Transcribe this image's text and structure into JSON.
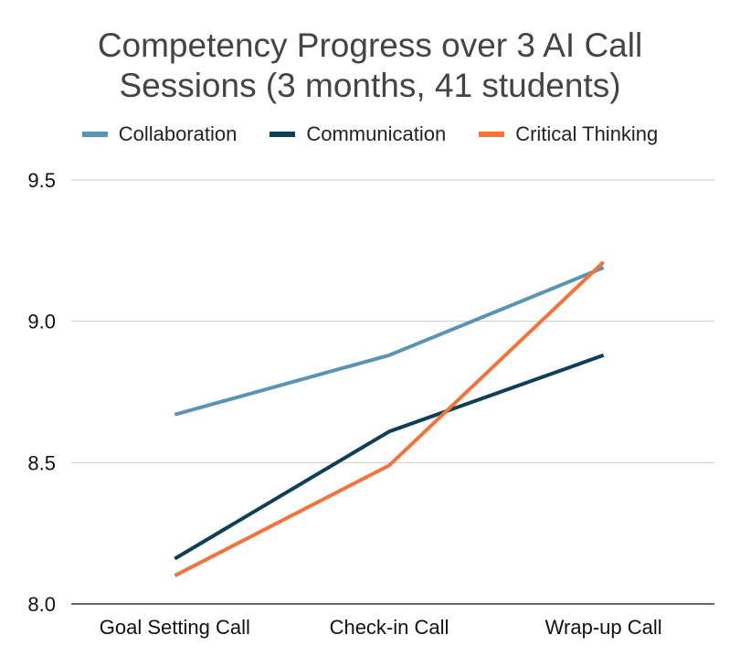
{
  "chart_data": {
    "type": "line",
    "title_lines": [
      "Competency Progress over 3 AI Call",
      "Sessions (3 months, 41 students)"
    ],
    "categories": [
      "Goal Setting Call",
      "Check-in Call",
      "Wrap-up Call"
    ],
    "series": [
      {
        "name": "Collaboration",
        "color": "#5B93B2",
        "values": [
          8.67,
          8.88,
          9.19
        ]
      },
      {
        "name": "Communication",
        "color": "#0D3F57",
        "values": [
          8.16,
          8.61,
          8.88
        ]
      },
      {
        "name": "Critical Thinking",
        "color": "#F4733A",
        "values": [
          8.1,
          8.49,
          9.21
        ]
      }
    ],
    "ylim": [
      8.0,
      9.5
    ],
    "yticks": [
      "8.0",
      "8.5",
      "9.0",
      "9.5"
    ],
    "xlabel": "",
    "ylabel": "",
    "grid": true,
    "legend_position": "top-center"
  }
}
